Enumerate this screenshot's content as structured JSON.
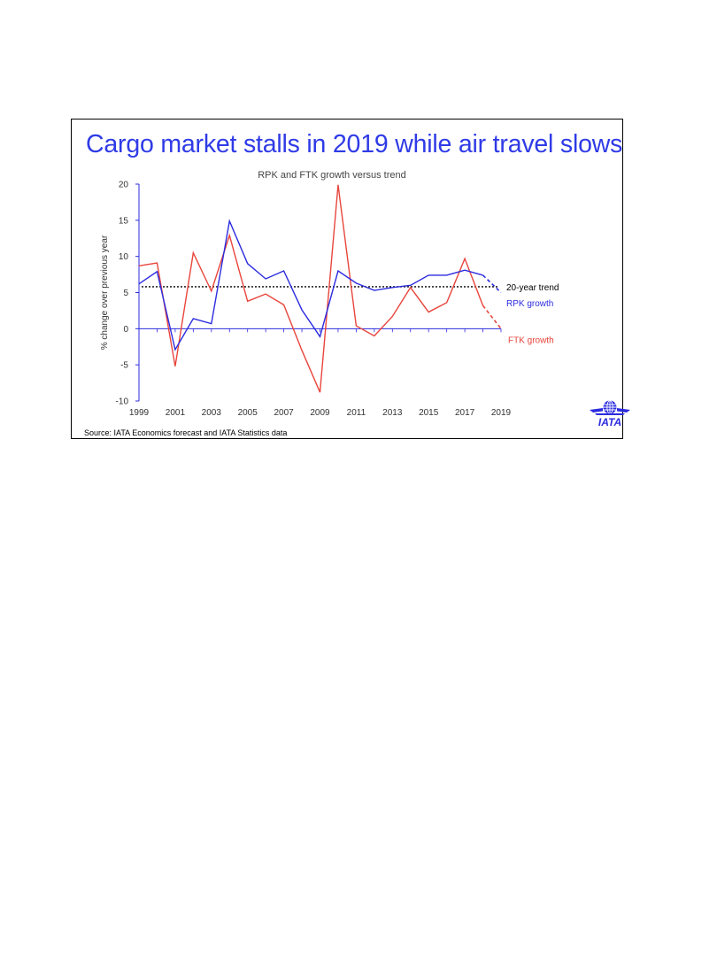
{
  "headline": "Cargo market stalls in 2019 while air travel slows",
  "source": "Source: IATA Economics forecast and IATA Statistics data",
  "logo_text": "IATA",
  "colors": {
    "headline": "#2f3be6",
    "rpk": "#2b2bdf",
    "ftk": "#e8453c",
    "trend": "#000000"
  },
  "chart_data": {
    "type": "line",
    "title": "RPK and FTK growth versus trend",
    "ylabel": "% change over previous year",
    "xlabel": "",
    "ylim": [
      -10,
      20
    ],
    "yticks": [
      20,
      15,
      10,
      5,
      0,
      -5,
      -10
    ],
    "xlim": [
      1999,
      2019
    ],
    "xticks": [
      1999,
      2001,
      2003,
      2005,
      2007,
      2009,
      2011,
      2013,
      2015,
      2017,
      2019
    ],
    "x": [
      1999,
      2000,
      2001,
      2002,
      2003,
      2004,
      2005,
      2006,
      2007,
      2008,
      2009,
      2010,
      2011,
      2012,
      2013,
      2014,
      2015,
      2016,
      2017,
      2018,
      2019
    ],
    "series": [
      {
        "name": "RPK growth",
        "color": "#2b2bdf",
        "forecast_from": 2018,
        "values": [
          6.2,
          7.9,
          -2.9,
          1.4,
          0.7,
          14.9,
          9.0,
          6.9,
          8.0,
          2.6,
          -1.1,
          8.0,
          6.3,
          5.3,
          5.7,
          6.0,
          7.4,
          7.4,
          8.1,
          7.4,
          5.0
        ]
      },
      {
        "name": "FTK growth",
        "color": "#e8453c",
        "forecast_from": 2018,
        "values": [
          8.7,
          9.1,
          -5.2,
          10.5,
          5.2,
          12.9,
          3.8,
          4.8,
          3.3,
          -3.0,
          -8.8,
          19.9,
          0.4,
          -1.0,
          1.7,
          5.7,
          2.3,
          3.6,
          9.7,
          3.2,
          0.0
        ]
      }
    ],
    "trend": {
      "name": "20-year trend",
      "value": 5.8,
      "style": "dotted"
    },
    "grid": false,
    "legend": "inline-right"
  }
}
